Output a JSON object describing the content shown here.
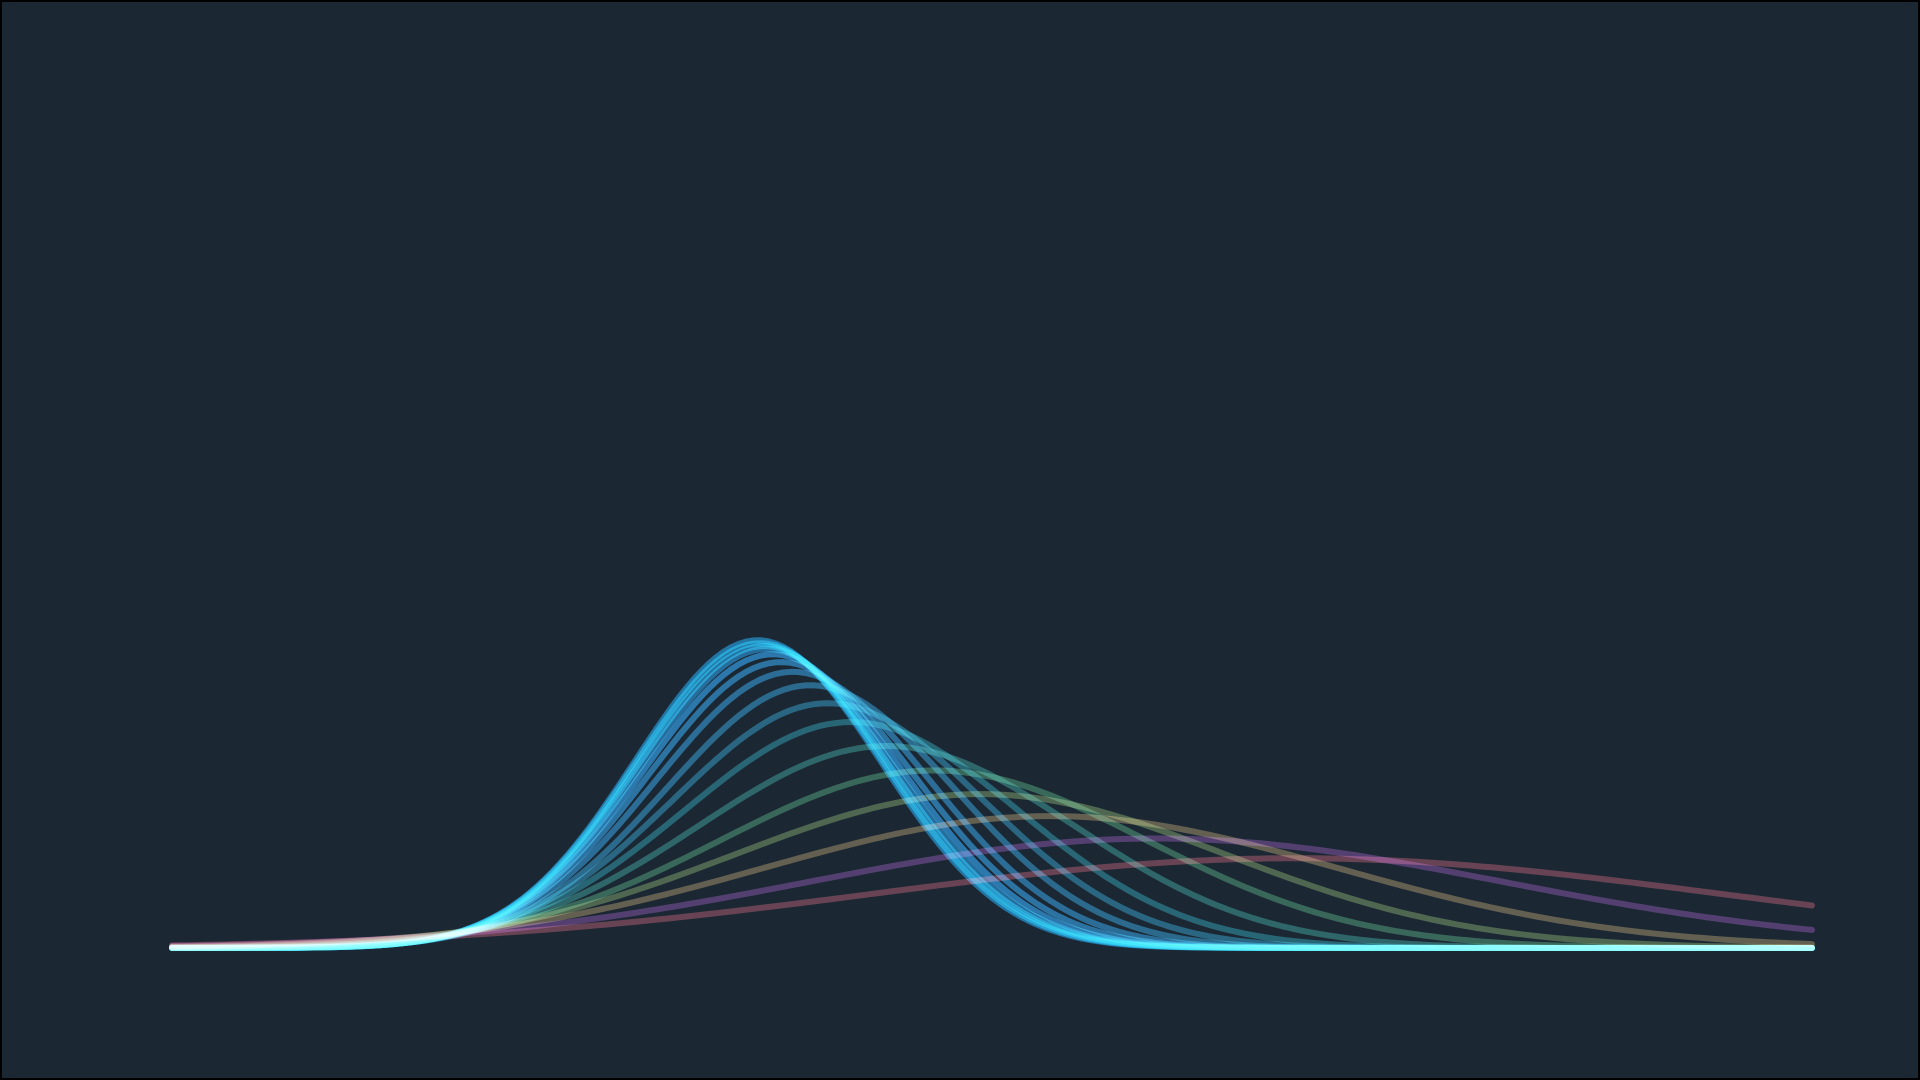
{
  "chart_data": {
    "type": "line",
    "title": "",
    "xlabel": "",
    "ylabel": "",
    "grid": false,
    "legend": "none",
    "axes_visible": false,
    "background_color": "#1b2833",
    "xlim": [
      -4.25,
      10.6
    ],
    "ylim": [
      0,
      1.0
    ],
    "x_range": [
      -4,
      10
    ],
    "series": [
      {
        "color": "#0ea5ff",
        "mu": 1.0,
        "sigma": 1.05
      },
      {
        "color": "#0ea5ff",
        "mu": 1.02,
        "sigma": 1.06
      },
      {
        "color": "#0ea5ff",
        "mu": 1.05,
        "sigma": 1.07
      },
      {
        "color": "#1596ee",
        "mu": 1.08,
        "sigma": 1.08
      },
      {
        "color": "#1b88d8",
        "mu": 1.13,
        "sigma": 1.1
      },
      {
        "color": "#1c7fc6",
        "mu": 1.2,
        "sigma": 1.13
      },
      {
        "color": "#1b75b2",
        "mu": 1.3,
        "sigma": 1.17
      },
      {
        "color": "#1a6f9e",
        "mu": 1.45,
        "sigma": 1.23
      },
      {
        "color": "#18698a",
        "mu": 1.6,
        "sigma": 1.32
      },
      {
        "color": "#176876",
        "mu": 1.8,
        "sigma": 1.43
      },
      {
        "color": "#1f6a5f",
        "mu": 2.1,
        "sigma": 1.6
      },
      {
        "color": "#2f6c46",
        "mu": 2.5,
        "sigma": 1.82
      },
      {
        "color": "#536b35",
        "mu": 2.9,
        "sigma": 2.1
      },
      {
        "color": "#725e35",
        "mu": 3.5,
        "sigma": 2.45
      },
      {
        "color": "#5a2a6e",
        "mu": 4.4,
        "sigma": 2.95
      },
      {
        "color": "#7a2d3a",
        "mu": 5.6,
        "sigma": 3.6
      }
    ]
  }
}
